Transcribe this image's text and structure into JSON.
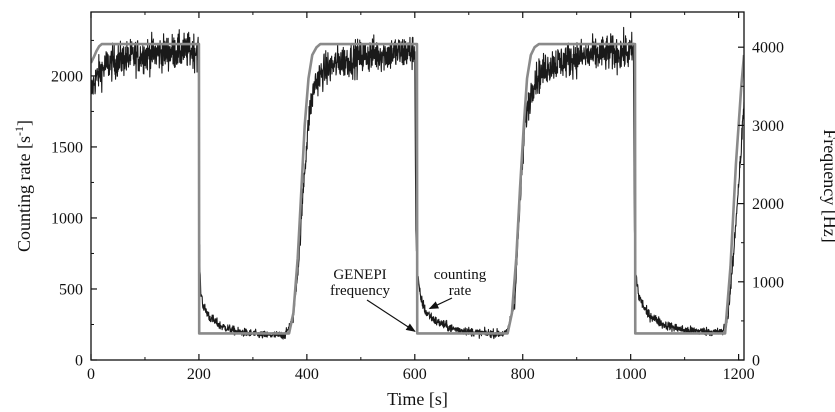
{
  "chart_data": {
    "type": "line",
    "title": "",
    "xlabel": "Time [s]",
    "ylabel_left": "Counting rate  [s",
    "ylabel_left_sup": "-1",
    "ylabel_left_end": "]",
    "ylabel_right": "Frequency [Hz]",
    "xlim": [
      0,
      1210
    ],
    "ylim_left": [
      0,
      2450
    ],
    "ylim_right": [
      0,
      4450
    ],
    "x_ticks": [
      "0",
      "200",
      "400",
      "600",
      "800",
      "1000",
      "1200"
    ],
    "y_left_ticks": [
      "0",
      "500",
      "1000",
      "1500",
      "2000"
    ],
    "y_right_ticks": [
      "0",
      "1000",
      "2000",
      "3000",
      "4000"
    ],
    "grid": false,
    "legend": "none",
    "series": [
      {
        "name": "counting rate",
        "axis": "left",
        "color": "#1a1a1a",
        "noisy": true,
        "x": [
          0,
          5,
          15,
          30,
          60,
          100,
          150,
          200,
          200.5,
          203,
          208,
          220,
          240,
          270,
          320,
          360,
          375,
          385,
          395,
          405,
          415,
          430,
          460,
          520,
          600,
          602,
          605,
          610,
          620,
          640,
          670,
          720,
          770,
          785,
          795,
          805,
          820,
          850,
          900,
          960,
          1005,
          1007,
          1010,
          1015,
          1030,
          1060,
          1100,
          1170,
          1180,
          1190,
          1200,
          1205,
          1210
        ],
        "y": [
          1870,
          1950,
          2020,
          2080,
          2120,
          2150,
          2170,
          2180,
          900,
          500,
          380,
          300,
          240,
          200,
          175,
          175,
          300,
          700,
          1300,
          1750,
          1950,
          2030,
          2100,
          2150,
          2170,
          900,
          600,
          450,
          340,
          270,
          220,
          190,
          185,
          400,
          1100,
          1700,
          1960,
          2080,
          2130,
          2160,
          2170,
          900,
          600,
          450,
          330,
          250,
          210,
          195,
          300,
          700,
          1250,
          1500,
          1800
        ]
      },
      {
        "name": "GENEPI frequency",
        "axis": "right",
        "color": "#8a8a8a",
        "noisy": false,
        "x": [
          0,
          5,
          10,
          15,
          20,
          200,
          200.5,
          367,
          375,
          383,
          390,
          396,
          403,
          410,
          418,
          425,
          430,
          604,
          604.5,
          772,
          780,
          788,
          795,
          802,
          808,
          815,
          822,
          830,
          835,
          1008,
          1008.5,
          1175,
          1185,
          1195,
          1205,
          1210
        ],
        "y": [
          3800,
          3870,
          3950,
          4010,
          4040,
          4040,
          340,
          340,
          600,
          1300,
          2200,
          3000,
          3600,
          3900,
          4000,
          4040,
          4040,
          4040,
          340,
          340,
          600,
          1300,
          2200,
          3000,
          3600,
          3900,
          4000,
          4040,
          4040,
          4040,
          340,
          340,
          1200,
          2500,
          3500,
          3900
        ]
      }
    ],
    "annotations": [
      {
        "lines": [
          "GENEPI",
          "frequency"
        ],
        "target": [
          604,
          340
        ],
        "target_axis": "right"
      },
      {
        "lines": [
          "counting",
          "rate"
        ],
        "target": [
          620,
          320
        ],
        "target_axis": "left"
      }
    ]
  }
}
